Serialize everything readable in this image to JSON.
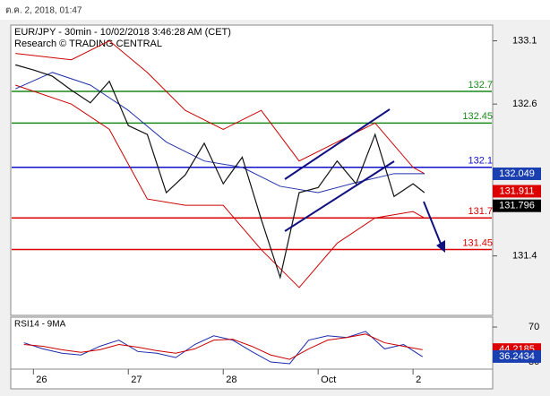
{
  "header": "ต.ค. 2, 2018, 01:47",
  "chart_data": {
    "type": "line",
    "title": "EUR/JPY - 30min - 10/02/2018 3:46:28 AM (CET)",
    "subtitle": "Research © TRADING CENTRAL",
    "xlim": [
      -0.22,
      4.82
    ],
    "xticks": [
      {
        "value": 0,
        "label": "26"
      },
      {
        "value": 1,
        "label": "27"
      },
      {
        "value": 2,
        "label": "28"
      },
      {
        "value": 3,
        "label": "Oct"
      },
      {
        "value": 4,
        "label": "2"
      }
    ],
    "ylim": [
      130.93,
      133.21
    ],
    "yticks": [
      133.1,
      132.6,
      131.4
    ],
    "series": [
      {
        "color": "#cc0000",
        "x": [
          -0.19,
          0.4,
          0.8,
          1.2,
          1.6,
          2.0,
          2.4,
          2.8,
          3.2,
          3.6,
          4.0,
          4.12
        ],
        "values": [
          133.0,
          132.95,
          133.1,
          132.85,
          132.55,
          132.4,
          132.55,
          132.15,
          132.3,
          132.45,
          132.1,
          132.05
        ]
      },
      {
        "color": "#cc0000",
        "x": [
          -0.19,
          0.4,
          0.8,
          1.2,
          1.6,
          2.0,
          2.4,
          2.8,
          3.2,
          3.6,
          4.0,
          4.12
        ],
        "values": [
          132.75,
          132.6,
          132.4,
          131.85,
          131.8,
          131.8,
          131.45,
          131.15,
          131.5,
          131.7,
          131.75,
          131.7
        ]
      },
      {
        "color": "#2233aa",
        "x": [
          -0.19,
          0.2,
          0.6,
          1.0,
          1.4,
          1.8,
          2.2,
          2.6,
          3.0,
          3.4,
          3.8,
          4.12
        ],
        "values": [
          132.72,
          132.85,
          132.75,
          132.55,
          132.3,
          132.15,
          132.1,
          131.95,
          131.9,
          131.98,
          132.05,
          132.05
        ]
      },
      {
        "color": "#111111",
        "x": [
          -0.19,
          0,
          0.2,
          0.4,
          0.6,
          0.8,
          1.0,
          1.2,
          1.4,
          1.6,
          1.8,
          2.0,
          2.2,
          2.4,
          2.6,
          2.8,
          3.0,
          3.2,
          3.4,
          3.6,
          3.8,
          4.0,
          4.12
        ],
        "values": [
          132.91,
          132.87,
          132.82,
          132.71,
          132.61,
          132.78,
          132.43,
          132.36,
          131.9,
          132.04,
          132.29,
          131.97,
          132.18,
          131.69,
          131.23,
          131.9,
          131.94,
          132.15,
          131.97,
          132.36,
          131.87,
          131.97,
          131.9
        ]
      }
    ],
    "levels": [
      {
        "value": 132.7,
        "color": "#1a8a1a"
      },
      {
        "value": 132.45,
        "color": "#1a8a1a"
      },
      {
        "value": 132.1,
        "color": "#1010cc"
      },
      {
        "value": 131.7,
        "color": "#dd0000"
      },
      {
        "value": 131.45,
        "color": "#dd0000"
      }
    ],
    "price_labels": [
      {
        "value": 132.049,
        "color": "#1a3fb0"
      },
      {
        "value": 131.911,
        "color": "#dd0000"
      },
      {
        "value": 131.796,
        "color": "#000000"
      }
    ],
    "rsi": {
      "title": "RSI14 - 9MA",
      "ylim": [
        21.8,
        80.3
      ],
      "yticks": [
        70,
        30
      ],
      "x": [
        -0.1,
        0.1,
        0.3,
        0.5,
        0.7,
        0.9,
        1.1,
        1.3,
        1.5,
        1.7,
        1.9,
        2.1,
        2.3,
        2.5,
        2.7,
        2.9,
        3.1,
        3.3,
        3.5,
        3.7,
        3.9,
        4.1
      ],
      "series": [
        {
          "color": "#1a2aaa",
          "values": [
            52,
            45,
            40,
            38,
            48,
            55,
            42,
            40,
            35,
            50,
            60,
            55,
            42,
            30,
            28,
            55,
            60,
            58,
            65,
            45,
            50,
            36
          ]
        },
        {
          "color": "#cc0000",
          "values": [
            50,
            48,
            44,
            41,
            44,
            50,
            47,
            43,
            40,
            45,
            55,
            56,
            48,
            38,
            33,
            45,
            55,
            58,
            62,
            52,
            48,
            44
          ]
        }
      ],
      "value_labels": [
        {
          "value": 44.2185,
          "color": "#dd0000"
        },
        {
          "value": 36.2434,
          "color": "#1a3fb0"
        }
      ]
    }
  }
}
